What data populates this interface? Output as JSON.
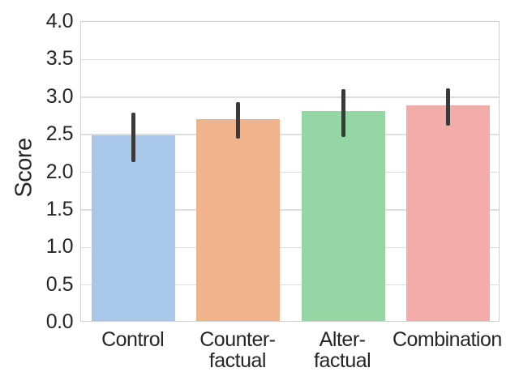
{
  "figure": {
    "background": "#ffffff",
    "text_color": "#262626",
    "grid_color": "#dedede",
    "spine_color": "#cfcfcf",
    "errorbar_color": "#3a3a3a"
  },
  "chart_data": {
    "type": "bar",
    "title": "",
    "xlabel": "",
    "ylabel": "Score",
    "categories": [
      "Control",
      "Counter-\nfactual",
      "Alter-\nfactual",
      "Combination"
    ],
    "values": [
      2.47,
      2.68,
      2.79,
      2.87
    ],
    "error_bars": {
      "low": [
        2.13,
        2.45,
        2.47,
        2.62
      ],
      "high": [
        2.79,
        2.93,
        3.11,
        3.12
      ]
    },
    "bar_colors": [
      "#a9c8e9",
      "#f1b38b",
      "#95d7a4",
      "#f3acaa"
    ],
    "ylim": [
      0,
      4
    ],
    "yticks": [
      0.0,
      0.5,
      1.0,
      1.5,
      2.0,
      2.5,
      3.0,
      3.5,
      4.0
    ],
    "ytick_labels": [
      "0.0",
      "0.5",
      "1.0",
      "1.5",
      "2.0",
      "2.5",
      "3.0",
      "3.5",
      "4.0"
    ],
    "grid": true,
    "legend": false
  }
}
